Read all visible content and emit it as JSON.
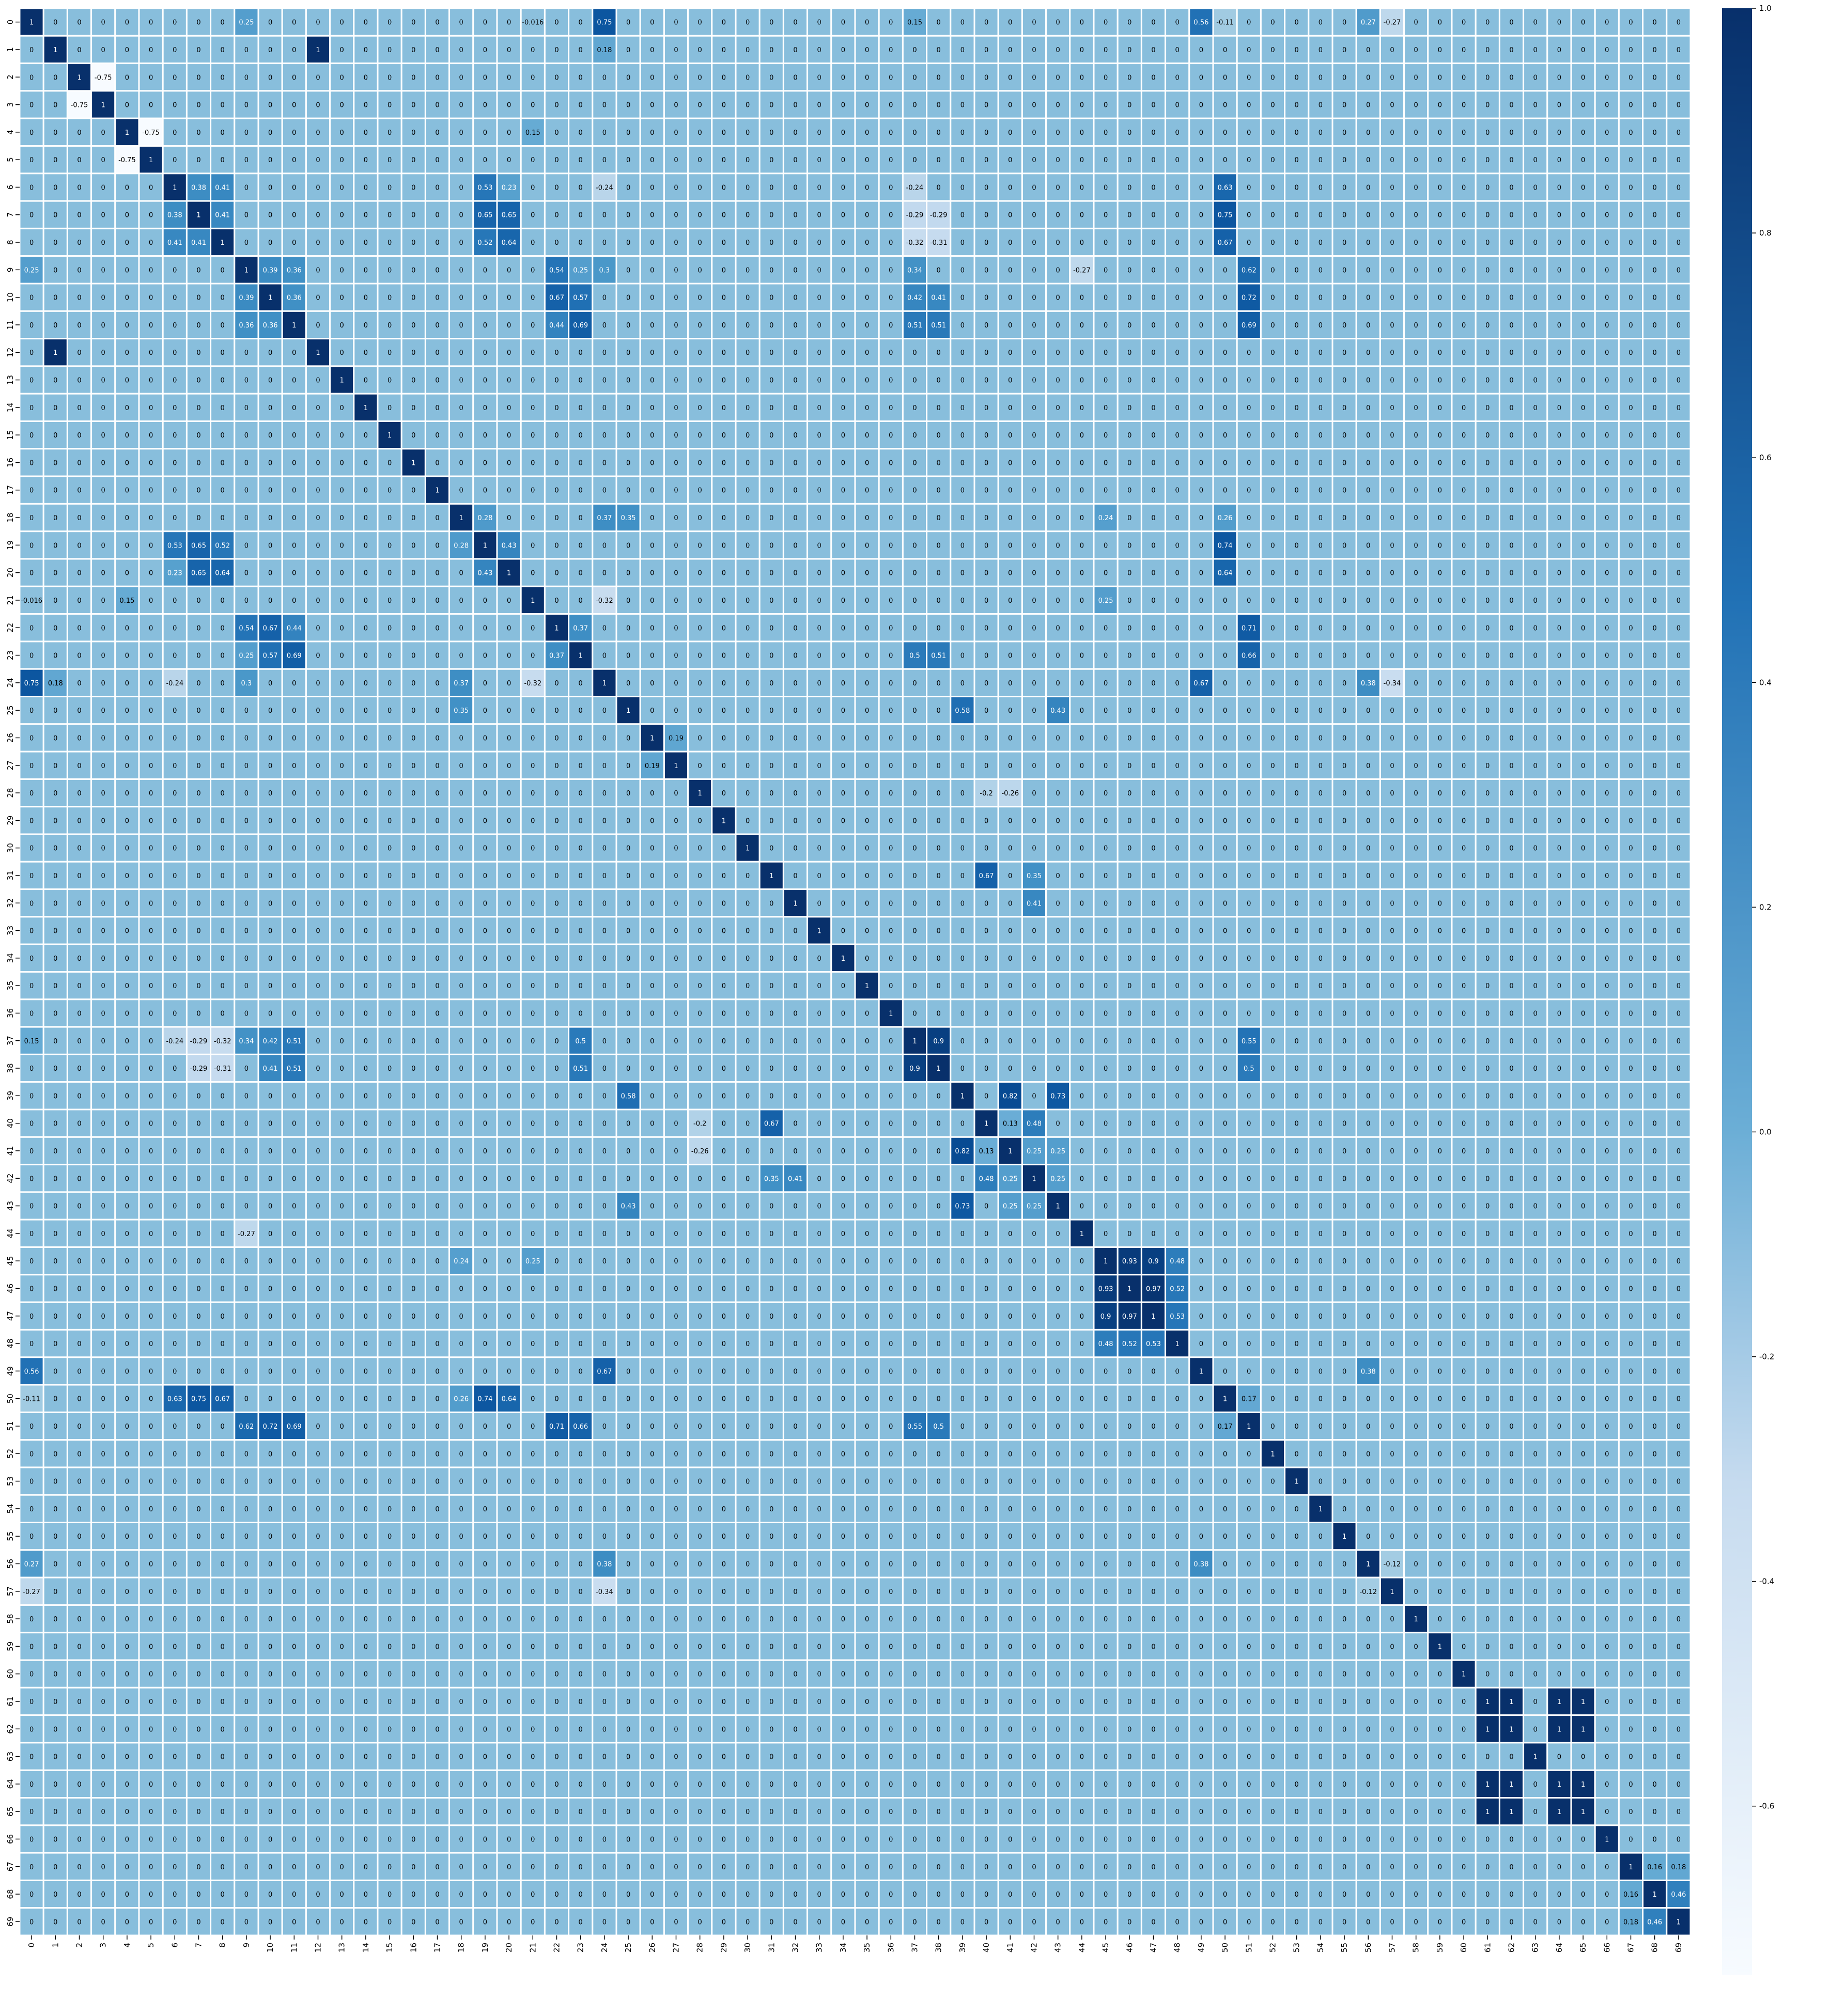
{
  "chart_data": {
    "type": "heatmap",
    "title": "",
    "xlabel": "",
    "ylabel": "",
    "x_ticks": [
      "0",
      "1",
      "2",
      "3",
      "4",
      "5",
      "6",
      "7",
      "8",
      "9",
      "10",
      "11",
      "12",
      "13",
      "14",
      "15",
      "16",
      "17",
      "18",
      "19",
      "20",
      "21",
      "22",
      "23",
      "24",
      "25",
      "26",
      "27",
      "28",
      "29",
      "30",
      "31",
      "32",
      "33",
      "34",
      "35",
      "36",
      "37",
      "38",
      "39",
      "40",
      "41",
      "42",
      "43",
      "44",
      "45",
      "46",
      "47",
      "48",
      "49",
      "50",
      "51",
      "52",
      "53",
      "54",
      "55",
      "56",
      "57",
      "58",
      "59",
      "60",
      "61",
      "62",
      "63",
      "64",
      "65",
      "66",
      "67",
      "68",
      "69"
    ],
    "y_ticks": [
      "0",
      "1",
      "2",
      "3",
      "4",
      "5",
      "6",
      "7",
      "8",
      "9",
      "10",
      "11",
      "12",
      "13",
      "14",
      "15",
      "16",
      "17",
      "18",
      "19",
      "20",
      "21",
      "22",
      "23",
      "24",
      "25",
      "26",
      "27",
      "28",
      "29",
      "30",
      "31",
      "32",
      "33",
      "34",
      "35",
      "36",
      "37",
      "38",
      "39",
      "40",
      "41",
      "42",
      "43",
      "44",
      "45",
      "46",
      "47",
      "48",
      "49",
      "50",
      "51",
      "52",
      "53",
      "54",
      "55",
      "56",
      "57",
      "58",
      "59",
      "60",
      "61",
      "62",
      "63",
      "64",
      "65",
      "66",
      "67",
      "68",
      "69"
    ],
    "colormap": "Blues",
    "colorbar": {
      "min": -0.75,
      "max": 1.0,
      "ticks": [
        "1.0",
        "0.8",
        "0.6",
        "0.4",
        "0.2",
        "0.0",
        "-0.2",
        "-0.4",
        "-0.6"
      ],
      "tick_values": [
        1.0,
        0.8,
        0.6,
        0.4,
        0.2,
        0.0,
        -0.2,
        -0.4,
        -0.6
      ]
    },
    "colors": {
      "low": "#f7fbff",
      "mid": "#6baed6",
      "high": "#08306b",
      "grid": "#ffffff"
    },
    "annotations": true,
    "diagonal_value": 1,
    "default_value": 0.0,
    "strong_pairs": [
      [
        0,
        24,
        0.75
      ],
      [
        0,
        49,
        0.56
      ],
      [
        0,
        56,
        0.27
      ],
      [
        0,
        57,
        -0.27
      ],
      [
        0,
        50,
        -0.11
      ],
      [
        0,
        37,
        0.15
      ],
      [
        0,
        21,
        -0.016
      ],
      [
        0,
        9,
        0.25
      ],
      [
        1,
        12,
        1.0
      ],
      [
        1,
        24,
        0.18
      ],
      [
        2,
        3,
        -0.75
      ],
      [
        4,
        5,
        -0.75
      ],
      [
        4,
        21,
        0.15
      ],
      [
        6,
        7,
        0.38
      ],
      [
        6,
        8,
        0.41
      ],
      [
        6,
        19,
        0.53
      ],
      [
        6,
        20,
        0.23
      ],
      [
        6,
        50,
        0.63
      ],
      [
        6,
        37,
        -0.24
      ],
      [
        6,
        24,
        -0.24
      ],
      [
        7,
        8,
        0.41
      ],
      [
        7,
        19,
        0.65
      ],
      [
        7,
        20,
        0.65
      ],
      [
        7,
        50,
        0.75
      ],
      [
        7,
        37,
        -0.29
      ],
      [
        7,
        38,
        -0.29
      ],
      [
        8,
        19,
        0.52
      ],
      [
        8,
        20,
        0.64
      ],
      [
        8,
        50,
        0.67
      ],
      [
        8,
        37,
        -0.32
      ],
      [
        8,
        38,
        -0.31
      ],
      [
        9,
        10,
        0.39
      ],
      [
        9,
        11,
        0.36
      ],
      [
        9,
        22,
        0.54
      ],
      [
        9,
        23,
        0.25
      ],
      [
        9,
        51,
        0.62
      ],
      [
        9,
        37,
        0.34
      ],
      [
        9,
        24,
        0.3
      ],
      [
        9,
        44,
        -0.27
      ],
      [
        10,
        11,
        0.36
      ],
      [
        10,
        22,
        0.67
      ],
      [
        10,
        23,
        0.57
      ],
      [
        10,
        51,
        0.72
      ],
      [
        10,
        37,
        0.42
      ],
      [
        10,
        38,
        0.41
      ],
      [
        11,
        22,
        0.44
      ],
      [
        11,
        23,
        0.69
      ],
      [
        11,
        51,
        0.69
      ],
      [
        11,
        37,
        0.51
      ],
      [
        11,
        38,
        0.51
      ],
      [
        18,
        19,
        0.28
      ],
      [
        18,
        24,
        0.37
      ],
      [
        18,
        25,
        0.35
      ],
      [
        18,
        45,
        0.24
      ],
      [
        18,
        50,
        0.26
      ],
      [
        19,
        20,
        0.43
      ],
      [
        19,
        50,
        0.74
      ],
      [
        20,
        50,
        0.64
      ],
      [
        21,
        24,
        -0.32
      ],
      [
        21,
        45,
        0.25
      ],
      [
        22,
        23,
        0.37
      ],
      [
        22,
        51,
        0.71
      ],
      [
        23,
        51,
        0.66
      ],
      [
        23,
        37,
        0.5
      ],
      [
        23,
        38,
        0.51
      ],
      [
        24,
        49,
        0.67
      ],
      [
        24,
        56,
        0.38
      ],
      [
        24,
        57,
        -0.34
      ],
      [
        25,
        39,
        0.58
      ],
      [
        25,
        43,
        0.43
      ],
      [
        26,
        27,
        0.19
      ],
      [
        28,
        40,
        -0.2
      ],
      [
        28,
        41,
        -0.26
      ],
      [
        31,
        40,
        0.67
      ],
      [
        31,
        42,
        0.35
      ],
      [
        32,
        42,
        0.41
      ],
      [
        37,
        38,
        0.9
      ],
      [
        37,
        51,
        0.55
      ],
      [
        38,
        51,
        0.5
      ],
      [
        39,
        41,
        0.82
      ],
      [
        39,
        43,
        0.73
      ],
      [
        40,
        42,
        0.48
      ],
      [
        40,
        41,
        0.13
      ],
      [
        41,
        43,
        0.25
      ],
      [
        41,
        42,
        0.25
      ],
      [
        42,
        43,
        0.25
      ],
      [
        45,
        46,
        0.93
      ],
      [
        45,
        47,
        0.9
      ],
      [
        45,
        48,
        0.48
      ],
      [
        46,
        47,
        0.97
      ],
      [
        46,
        48,
        0.52
      ],
      [
        47,
        48,
        0.53
      ],
      [
        49,
        56,
        0.38
      ],
      [
        50,
        51,
        0.17
      ],
      [
        56,
        57,
        -0.12
      ],
      [
        61,
        62,
        1.0
      ],
      [
        61,
        64,
        1.0
      ],
      [
        61,
        65,
        1.0
      ],
      [
        62,
        64,
        1.0
      ],
      [
        62,
        65,
        1.0
      ],
      [
        64,
        65,
        1.0
      ],
      [
        68,
        69,
        0.46
      ],
      [
        67,
        68,
        0.16
      ],
      [
        67,
        69,
        0.18
      ]
    ]
  }
}
